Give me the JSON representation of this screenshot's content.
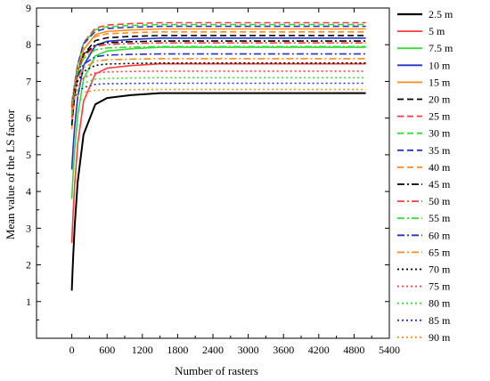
{
  "chart_data": {
    "type": "line",
    "title": "",
    "xlabel": "Number of rasters",
    "ylabel": "Mean value of the LS factor",
    "xlim": [
      -600,
      5400
    ],
    "ylim": [
      0,
      9
    ],
    "x_ticks": [
      0,
      600,
      1200,
      1800,
      2400,
      3000,
      3600,
      4200,
      4800,
      5400
    ],
    "y_ticks": [
      1,
      2,
      3,
      4,
      5,
      6,
      7,
      8,
      9
    ],
    "x": [
      0,
      10,
      25,
      50,
      100,
      200,
      400,
      600,
      1000,
      1500,
      2000,
      3000,
      4000,
      5000
    ],
    "legend_position": "right",
    "series": [
      {
        "name": "2.5 m",
        "color": "#000000",
        "dash": "solid",
        "start": 1.3,
        "final": 6.68
      },
      {
        "name": "5 m",
        "color": "#ff3b3b",
        "dash": "solid",
        "start": 2.6,
        "final": 7.48
      },
      {
        "name": "7.5 m",
        "color": "#33dd33",
        "dash": "solid",
        "start": 3.8,
        "final": 7.93
      },
      {
        "name": "10 m",
        "color": "#2233cc",
        "dash": "solid",
        "start": 4.6,
        "final": 8.18
      },
      {
        "name": "15 m",
        "color": "#ff8c1a",
        "dash": "solid",
        "start": 5.7,
        "final": 8.43
      },
      {
        "name": "20 m",
        "color": "#000000",
        "dash": "dash",
        "start": 5.8,
        "final": 8.25
      },
      {
        "name": "25 m",
        "color": "#ff3b3b",
        "dash": "dash",
        "start": 6.0,
        "final": 8.6
      },
      {
        "name": "30 m",
        "color": "#33dd33",
        "dash": "dash",
        "start": 6.1,
        "final": 8.55
      },
      {
        "name": "35 m",
        "color": "#2233cc",
        "dash": "dash",
        "start": 6.2,
        "final": 8.5
      },
      {
        "name": "40 m",
        "color": "#ff8c1a",
        "dash": "dash",
        "start": 6.2,
        "final": 8.35
      },
      {
        "name": "45 m",
        "color": "#000000",
        "dash": "dashdot",
        "start": 6.3,
        "final": 8.1
      },
      {
        "name": "50 m",
        "color": "#ff3b3b",
        "dash": "dashdot",
        "start": 6.3,
        "final": 8.05
      },
      {
        "name": "55 m",
        "color": "#33dd33",
        "dash": "dashdot",
        "start": 6.4,
        "final": 7.95
      },
      {
        "name": "60 m",
        "color": "#2233cc",
        "dash": "dashdot",
        "start": 6.4,
        "final": 7.75
      },
      {
        "name": "65 m",
        "color": "#ff8c1a",
        "dash": "dashdot",
        "start": 6.4,
        "final": 7.62
      },
      {
        "name": "70 m",
        "color": "#000000",
        "dash": "dot",
        "start": 6.4,
        "final": 7.5
      },
      {
        "name": "75 m",
        "color": "#ff3b3b",
        "dash": "dot",
        "start": 6.4,
        "final": 7.28
      },
      {
        "name": "80 m",
        "color": "#33dd33",
        "dash": "dot",
        "start": 6.4,
        "final": 7.1
      },
      {
        "name": "85 m",
        "color": "#2233cc",
        "dash": "dot",
        "start": 6.4,
        "final": 6.95
      },
      {
        "name": "90 m",
        "color": "#ff8c1a",
        "dash": "dot",
        "start": 6.4,
        "final": 6.78
      }
    ]
  }
}
